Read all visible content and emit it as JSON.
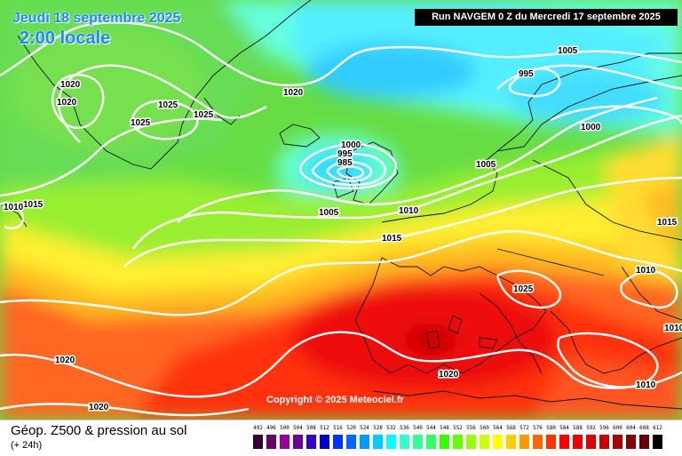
{
  "header": {
    "date_line": "Jeudi 18 septembre 2025",
    "time_line": "2:00 locale",
    "run_banner": "Run NAVGEM 0 Z du Mercredi 17 septembre 2025"
  },
  "map": {
    "copyright": "Copyright © 2025 Meteociel.fr",
    "isobar_labels": [
      "1020",
      "1020",
      "1025",
      "1025",
      "1025",
      "1020",
      "1005",
      "995",
      "1000",
      "1000",
      "995",
      "985",
      "1005",
      "1010",
      "1015",
      "1005",
      "1015",
      "1015",
      "1025",
      "1010",
      "1010",
      "1010",
      "1020",
      "1020",
      "1020",
      "1010"
    ],
    "colors": {
      "isobar": "#ffffff",
      "coastline": "#111111"
    }
  },
  "footer": {
    "title": "Géop. Z500 & pression au sol",
    "subtitle": "(+ 24h)"
  },
  "legend": {
    "labels": [
      "492",
      "496",
      "500",
      "504",
      "508",
      "512",
      "516",
      "520",
      "524",
      "528",
      "532",
      "536",
      "540",
      "544",
      "548",
      "552",
      "556",
      "560",
      "564",
      "568",
      "572",
      "576",
      "580",
      "584",
      "588",
      "592",
      "596",
      "600",
      "604",
      "608",
      "612"
    ],
    "colors": [
      "#330033",
      "#660066",
      "#990099",
      "#660099",
      "#3300cc",
      "#0000cc",
      "#0033ff",
      "#0066ff",
      "#0099ff",
      "#00ccff",
      "#00ffff",
      "#33ffcc",
      "#33ff99",
      "#33ff66",
      "#33ff00",
      "#66ff00",
      "#99ff00",
      "#ccff00",
      "#ffff00",
      "#ffcc00",
      "#ff9900",
      "#ff6600",
      "#ff3300",
      "#ff0000",
      "#ee0000",
      "#dd0000",
      "#cc0000",
      "#aa0000",
      "#880000",
      "#660000",
      "#000000"
    ]
  }
}
